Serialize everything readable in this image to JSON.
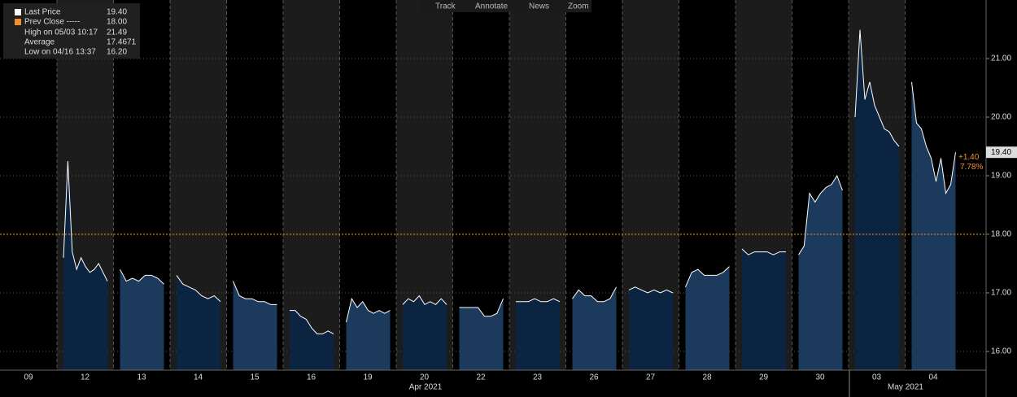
{
  "toolbar": [
    "Track",
    "Annotate",
    "News",
    "Zoom"
  ],
  "legend": [
    {
      "label": "Last Price",
      "value": "19.40"
    },
    {
      "label": "Prev Close -----",
      "value": "18.00"
    },
    {
      "label": "High on 05/03 10:17",
      "value": "21.49"
    },
    {
      "label": "Average",
      "value": "17.4671"
    },
    {
      "label": "Low on 04/16 13:37",
      "value": "16.20"
    }
  ],
  "chart_data": {
    "type": "area",
    "categories": [
      "09",
      "12",
      "13",
      "14",
      "15",
      "16",
      "19",
      "20",
      "22",
      "23",
      "26",
      "27",
      "28",
      "29",
      "30",
      "03",
      "04"
    ],
    "months": [
      "Apr 2021",
      "May 2021"
    ],
    "values": [
      null,
      [
        17.6,
        19.25,
        17.7,
        17.4,
        17.6,
        17.45,
        17.35,
        17.4,
        17.5,
        17.35,
        17.2
      ],
      [
        17.4,
        17.2,
        17.25,
        17.2,
        17.3,
        17.3,
        17.25,
        17.15
      ],
      [
        17.3,
        17.15,
        17.1,
        17.05,
        16.95,
        16.9,
        16.95,
        16.85
      ],
      [
        17.2,
        16.95,
        16.9,
        16.9,
        16.85,
        16.85,
        16.8,
        16.8
      ],
      [
        16.7,
        16.7,
        16.6,
        16.55,
        16.4,
        16.3,
        16.3,
        16.35,
        16.3
      ],
      [
        16.5,
        16.9,
        16.75,
        16.85,
        16.7,
        16.65,
        16.7,
        16.65,
        16.7
      ],
      [
        16.8,
        16.9,
        16.85,
        16.95,
        16.8,
        16.85,
        16.8,
        16.9,
        16.8
      ],
      [
        16.75,
        16.75,
        16.75,
        16.75,
        16.6,
        16.6,
        16.65,
        16.9
      ],
      [
        16.85,
        16.85,
        16.85,
        16.9,
        16.85,
        16.85,
        16.9,
        16.85
      ],
      [
        16.9,
        17.05,
        16.95,
        16.95,
        16.85,
        16.85,
        16.9,
        17.1
      ],
      [
        17.05,
        17.1,
        17.05,
        17.0,
        17.05,
        17.0,
        17.05,
        17.0
      ],
      [
        17.1,
        17.35,
        17.4,
        17.3,
        17.3,
        17.3,
        17.35,
        17.45
      ],
      [
        17.75,
        17.65,
        17.7,
        17.7,
        17.7,
        17.65,
        17.7,
        17.7
      ],
      [
        17.65,
        17.8,
        18.7,
        18.55,
        18.7,
        18.8,
        18.85,
        19.0,
        18.75
      ],
      [
        20.0,
        21.49,
        20.3,
        20.6,
        20.2,
        20.0,
        19.8,
        19.75,
        19.6,
        19.5
      ],
      [
        20.6,
        19.9,
        19.8,
        19.5,
        19.3,
        18.9,
        19.3,
        18.7,
        18.85,
        19.4
      ]
    ],
    "colors": [
      "#1b3a5c",
      "#0b2442"
    ],
    "line_color": "#ffffff",
    "prev_close": 18.0,
    "prev_close_color": "#f0922b",
    "last_label": "19.40",
    "change": "+1.40",
    "change_pct": "7.78%",
    "ylim": [
      15.68,
      22.0
    ],
    "yticks": [
      {
        "value": 16,
        "label": "16.00"
      },
      {
        "value": 17,
        "label": "17.00"
      },
      {
        "value": 18,
        "label": "18.00"
      },
      {
        "value": 19,
        "label": "19.00"
      },
      {
        "value": 20,
        "label": "20.00"
      },
      {
        "value": 21,
        "label": "21.00"
      }
    ],
    "grid": true
  }
}
